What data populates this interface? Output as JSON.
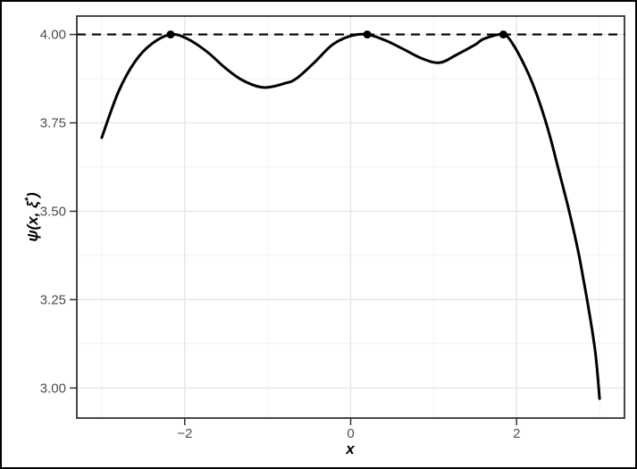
{
  "chart_data": {
    "type": "line",
    "title": "",
    "xlabel": "x",
    "ylabel": "ψ(x, ξ*)",
    "ylabel_parts": {
      "prefix": "ψ(x, ξ",
      "sup": "*",
      "suffix": ")"
    },
    "xlim": [
      -3.3,
      3.3
    ],
    "ylim": [
      2.915,
      4.052
    ],
    "grid": true,
    "legend_position": "none",
    "x_major_ticks": [
      {
        "v": -2,
        "label": "−2"
      },
      {
        "v": 0,
        "label": "0"
      },
      {
        "v": 2,
        "label": "2"
      }
    ],
    "x_minor_ticks": [
      -3,
      -1,
      1,
      3
    ],
    "y_major_ticks": [
      {
        "v": 3.0,
        "label": "3.00"
      },
      {
        "v": 3.25,
        "label": "3.25"
      },
      {
        "v": 3.5,
        "label": "3.50"
      },
      {
        "v": 3.75,
        "label": "3.75"
      },
      {
        "v": 4.0,
        "label": "4.00"
      }
    ],
    "y_minor_ticks": [
      3.125,
      3.375,
      3.625,
      3.875
    ],
    "reference_line": {
      "y": 4.0,
      "style": "dashed",
      "color": "#000000"
    },
    "series": [
      {
        "name": "psi-variance-function",
        "color": "#000000",
        "points": [
          [
            -3.0,
            3.708
          ],
          [
            -2.8,
            3.837
          ],
          [
            -2.6,
            3.923
          ],
          [
            -2.4,
            3.973
          ],
          [
            -2.17,
            4.0
          ],
          [
            -1.97,
            3.988
          ],
          [
            -1.73,
            3.951
          ],
          [
            -1.51,
            3.905
          ],
          [
            -1.3,
            3.87
          ],
          [
            -1.05,
            3.85
          ],
          [
            -0.79,
            3.862
          ],
          [
            -0.65,
            3.876
          ],
          [
            -0.44,
            3.92
          ],
          [
            -0.22,
            3.971
          ],
          [
            0.0,
            3.996
          ],
          [
            0.2,
            4.0
          ],
          [
            0.42,
            3.983
          ],
          [
            0.64,
            3.958
          ],
          [
            0.85,
            3.933
          ],
          [
            1.07,
            3.92
          ],
          [
            1.28,
            3.943
          ],
          [
            1.5,
            3.971
          ],
          [
            1.61,
            3.988
          ],
          [
            1.84,
            4.0
          ],
          [
            1.96,
            3.971
          ],
          [
            2.09,
            3.915
          ],
          [
            2.2,
            3.857
          ],
          [
            2.31,
            3.784
          ],
          [
            2.41,
            3.705
          ],
          [
            2.52,
            3.604
          ],
          [
            2.63,
            3.503
          ],
          [
            2.74,
            3.389
          ],
          [
            2.81,
            3.301
          ],
          [
            2.88,
            3.207
          ],
          [
            2.95,
            3.098
          ],
          [
            3.0,
            2.97
          ]
        ]
      }
    ],
    "support_points": {
      "color": "#000000",
      "points": [
        [
          -2.17,
          4.0
        ],
        [
          0.2,
          4.0
        ],
        [
          1.84,
          4.0
        ]
      ]
    },
    "colors": {
      "curve": "#000000",
      "dashed_line": "#000000",
      "dots": "#000000",
      "grid_major": "#e4e4e4",
      "grid_minor": "#f1f1f1",
      "panel_border": "#333333",
      "axis_text": "#4d4d4d",
      "tick_mark": "#333333",
      "panel_background": "#ffffff"
    }
  }
}
